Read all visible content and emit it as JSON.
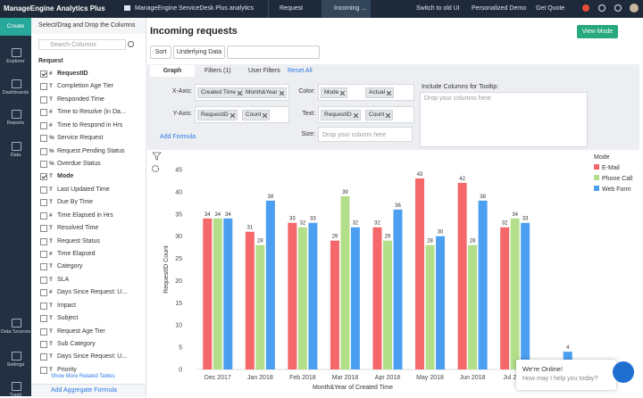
{
  "topbar": {
    "brand": "ManageEngine",
    "product": "Analytics Plus",
    "workspace": "ManageEngine ServiceDesk Plus analytics",
    "tabs": [
      "Request",
      "Incoming ..."
    ],
    "links": [
      "Switch to old UI",
      "Personalized Demo",
      "Get Quote"
    ]
  },
  "sidebar": {
    "create": "Create",
    "items": [
      "Explorer",
      "Dashboards",
      "Reports",
      "Data",
      "Data Sources",
      "Settings",
      "Trash"
    ]
  },
  "columns_panel": {
    "title": "Select/Drag and Drop the Columns",
    "search_placeholder": "Search Columns",
    "table": "Request",
    "columns": [
      {
        "icon": "#",
        "label": "RequestID",
        "checked": true
      },
      {
        "icon": "T",
        "label": "Completion Age Tier",
        "checked": false
      },
      {
        "icon": "T",
        "label": "Responded Time",
        "checked": false
      },
      {
        "icon": "#",
        "label": "Time to Resolve (in Da...",
        "checked": false
      },
      {
        "icon": "#",
        "label": "Time to Respond in Hrs",
        "checked": false
      },
      {
        "icon": "%",
        "label": "Service Request",
        "checked": false
      },
      {
        "icon": "%",
        "label": "Request Pending Status",
        "checked": false
      },
      {
        "icon": "%",
        "label": "Overdue Status",
        "checked": false
      },
      {
        "icon": "T",
        "label": "Mode",
        "checked": true
      },
      {
        "icon": "T",
        "label": "Last Updated Time",
        "checked": false
      },
      {
        "icon": "T",
        "label": "Due By Time",
        "checked": false
      },
      {
        "icon": "#",
        "label": "Time Elapsed in Hrs",
        "checked": false
      },
      {
        "icon": "T",
        "label": "Resolved Time",
        "checked": false
      },
      {
        "icon": "T",
        "label": "Request Status",
        "checked": false
      },
      {
        "icon": "#",
        "label": "Time Elapsed",
        "checked": false
      },
      {
        "icon": "T",
        "label": "Category",
        "checked": false
      },
      {
        "icon": "T",
        "label": "SLA",
        "checked": false
      },
      {
        "icon": "#",
        "label": "Days Since Request: U...",
        "checked": false
      },
      {
        "icon": "T",
        "label": "Impact",
        "checked": false
      },
      {
        "icon": "T",
        "label": "Subject",
        "checked": false
      },
      {
        "icon": "T",
        "label": "Request Age Tier",
        "checked": false
      },
      {
        "icon": "T",
        "label": "Sub Category",
        "checked": false
      },
      {
        "icon": "T",
        "label": "Days Since Request: U...",
        "checked": false
      },
      {
        "icon": "T",
        "label": "Priority",
        "checked": false
      }
    ],
    "more": "Show More Related Tables",
    "formula": "Add Aggregate Formula"
  },
  "report": {
    "title": "Incoming requests",
    "buttons": [
      "Sort",
      "Underlying Data"
    ],
    "view_mode": "View Mode"
  },
  "config": {
    "tabs": [
      "Graph",
      "Filters (1)",
      "User Filters"
    ],
    "reset": "Reset All",
    "x_axis": {
      "label": "X-Axis:",
      "column": "Created Time",
      "function": "Month&Year"
    },
    "y_axis": {
      "label": "Y-Axis:",
      "column": "RequestID",
      "function": "Count"
    },
    "color": {
      "label": "Color:",
      "column": "Mode",
      "function": "Actual"
    },
    "text": {
      "label": "Text:",
      "column": "RequestID",
      "function": "Count"
    },
    "size": {
      "label": "Size:",
      "placeholder": "Drop your column here"
    },
    "tooltip": {
      "label": "Include Columns for Tooltip:",
      "placeholder": "Drop your columns here"
    },
    "add_formula": "Add Formula"
  },
  "chart_data": {
    "type": "bar",
    "x_label": "Month&Year of Created Time",
    "y_label": "RequestID Count",
    "legend_title": "Mode",
    "categories": [
      "Dec 2017",
      "Jan 2018",
      "Feb 2018",
      "Mar 2018",
      "Apr 2018",
      "May 2018",
      "Jun 2018",
      "Jul 2018",
      null
    ],
    "series": [
      {
        "name": "E-Mail",
        "color": "#f4676b",
        "values": [
          34,
          31,
          33,
          29,
          32,
          43,
          42,
          32,
          null
        ]
      },
      {
        "name": "Phone Call",
        "color": "#b3df8a",
        "values": [
          34,
          28,
          32,
          39,
          29,
          28,
          28,
          34,
          null
        ]
      },
      {
        "name": "Web Form",
        "color": "#4c9ff0",
        "values": [
          34,
          38,
          33,
          32,
          36,
          30,
          38,
          33,
          4
        ]
      }
    ],
    "ylim": [
      0,
      45
    ],
    "yticks": [
      0,
      5,
      10,
      15,
      20,
      25,
      30,
      35,
      40,
      45
    ],
    "grid": false,
    "legend": "right"
  },
  "chat": {
    "title": "We're Online!",
    "subtitle": "How may I help you today?"
  }
}
